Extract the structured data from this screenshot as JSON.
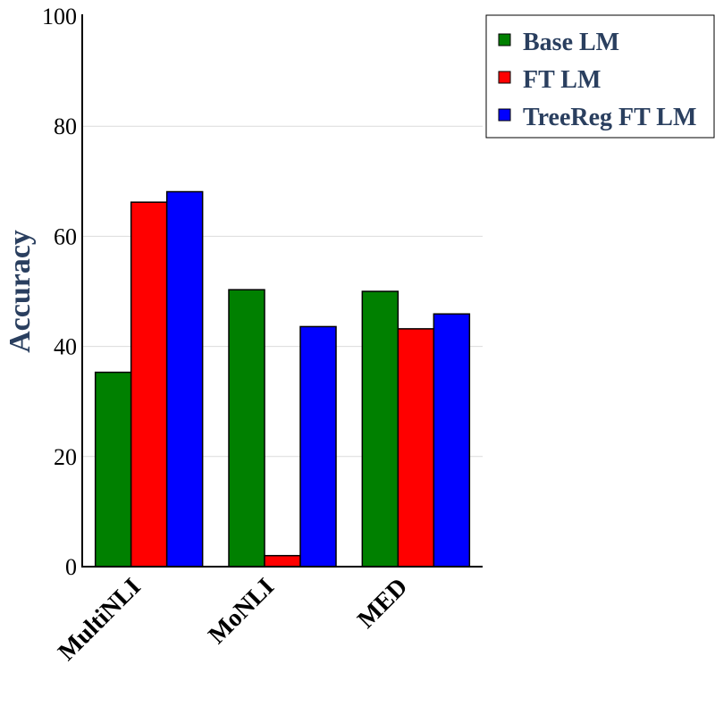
{
  "chart_data": {
    "type": "bar",
    "title": "",
    "xlabel": "",
    "ylabel": "Accuracy",
    "ylim": [
      0,
      100
    ],
    "yticks": [
      "0",
      "20",
      "40",
      "60",
      "80",
      "100"
    ],
    "categories": [
      "MultiNLI",
      "MoNLI",
      "MED"
    ],
    "series": [
      {
        "name": "Base LM",
        "color": "#008000",
        "values": [
          35.3,
          50.3,
          50.0
        ]
      },
      {
        "name": "FT LM",
        "color": "#ff0000",
        "values": [
          66.2,
          2.0,
          43.2
        ]
      },
      {
        "name": "TreeReg FT LM",
        "color": "#0000ff",
        "values": [
          68.1,
          43.6,
          45.9
        ]
      }
    ],
    "grid": true,
    "legend_position": "top-right"
  }
}
